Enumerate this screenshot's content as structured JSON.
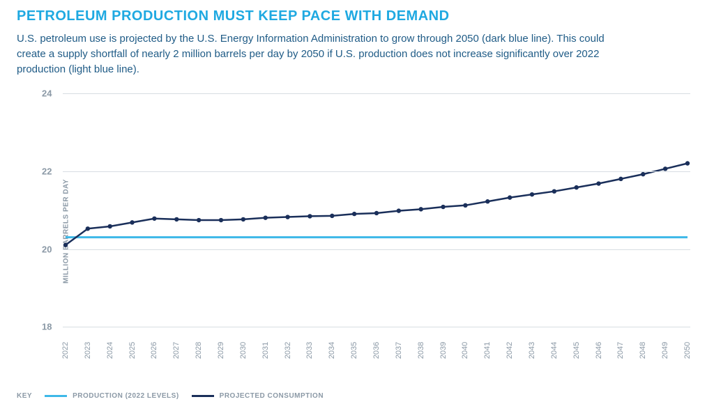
{
  "title": "PETROLEUM PRODUCTION MUST KEEP PACE WITH DEMAND",
  "title_color": "#1fa9e1",
  "subtitle": "U.S. petroleum use is projected by the U.S. Energy Information Administration to grow through 2050 (dark blue line). This could create a supply shortfall of nearly 2 million barrels per day by 2050 if U.S. production does not increase significantly over 2022 production (light blue line).",
  "subtitle_color": "#1f5b86",
  "ylabel": "MILLION BARRELS PER DAY",
  "key_label": "KEY",
  "legend": {
    "production": {
      "label": "PRODUCTION (2022 LEVELS)",
      "color": "#3db8e8"
    },
    "consumption": {
      "label": "PROJECTED CONSUMPTION",
      "color": "#1a2f5a"
    }
  },
  "chart": {
    "type": "line",
    "ylim": [
      18,
      24
    ],
    "yticks": [
      18,
      20,
      22,
      24
    ],
    "gridline_color": "#d7dde2",
    "axis_label_color": "#8b99a6",
    "background": "#ffffff",
    "years": [
      2022,
      2023,
      2024,
      2025,
      2026,
      2027,
      2028,
      2029,
      2030,
      2031,
      2032,
      2033,
      2034,
      2035,
      2036,
      2037,
      2038,
      2039,
      2040,
      2041,
      2042,
      2043,
      2044,
      2045,
      2046,
      2047,
      2048,
      2049,
      2050
    ],
    "production_value": 20.3,
    "production_color": "#3db8e8",
    "production_width": 3,
    "consumption_values": [
      20.1,
      20.52,
      20.58,
      20.68,
      20.78,
      20.76,
      20.74,
      20.74,
      20.76,
      20.8,
      20.82,
      20.84,
      20.85,
      20.9,
      20.92,
      20.98,
      21.02,
      21.08,
      21.12,
      21.22,
      21.32,
      21.4,
      21.48,
      21.58,
      21.68,
      21.8,
      21.92,
      22.06,
      22.2
    ],
    "consumption_color": "#1a2f5a",
    "consumption_width": 2.5,
    "marker_radius": 3.2
  }
}
